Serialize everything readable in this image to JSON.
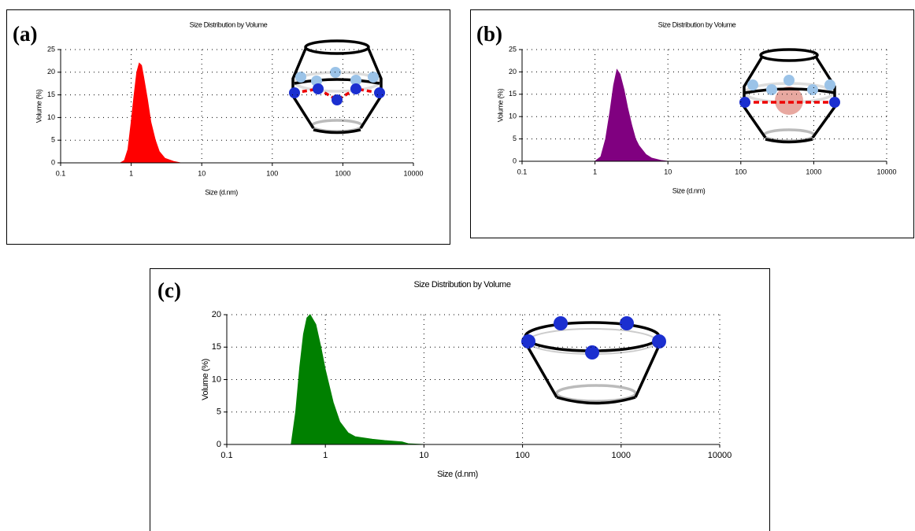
{
  "chart_data": [
    {
      "type": "area",
      "panel_label": "(a)",
      "title": "Size Distribution by Volume",
      "x_label": "Size (d.nm)",
      "y_label": "Volume (%)",
      "log_x": true,
      "grid": true,
      "color": "#ff0000",
      "x": [
        0.7,
        0.8,
        0.9,
        1.0,
        1.1,
        1.2,
        1.3,
        1.4,
        1.5,
        1.7,
        1.9,
        2.2,
        2.5,
        3,
        4,
        5,
        10000
      ],
      "values": [
        0,
        0.5,
        3,
        9,
        15,
        20,
        22,
        21.5,
        19,
        14,
        9,
        5,
        2.5,
        1,
        0.3,
        0,
        0
      ],
      "xlim": [
        0.1,
        10000
      ],
      "xticks": [
        0.1,
        1,
        10,
        100,
        1000,
        10000
      ],
      "ylim": [
        0,
        25
      ],
      "yticks": [
        0,
        5,
        10,
        15,
        20,
        25
      ]
    },
    {
      "type": "area",
      "panel_label": "(b)",
      "title": "Size Distribution by Volume",
      "x_label": "Size (d.nm)",
      "y_label": "Volume (%)",
      "log_x": true,
      "grid": true,
      "color": "#800080",
      "x": [
        1.0,
        1.2,
        1.4,
        1.6,
        1.8,
        2.0,
        2.2,
        2.5,
        2.8,
        3.2,
        3.6,
        4,
        5,
        6,
        8,
        10,
        10000
      ],
      "values": [
        0,
        1,
        5,
        11,
        17,
        20.5,
        19.5,
        16,
        12,
        8,
        5,
        3.5,
        1.5,
        0.7,
        0.2,
        0,
        0
      ],
      "xlim": [
        0.1,
        10000
      ],
      "xticks": [
        0.1,
        1,
        10,
        100,
        1000,
        10000
      ],
      "ylim": [
        0,
        25
      ],
      "yticks": [
        0,
        5,
        10,
        15,
        20,
        25
      ]
    },
    {
      "type": "area",
      "panel_label": "(c)",
      "title": "Size Distribution by Volume",
      "x_label": "Size (d.nm)",
      "y_label": "Volume (%)",
      "log_x": true,
      "grid": true,
      "color": "#008000",
      "x": [
        0.45,
        0.5,
        0.55,
        0.6,
        0.65,
        0.7,
        0.8,
        0.9,
        1.0,
        1.2,
        1.4,
        1.7,
        2,
        3,
        4,
        6,
        7,
        10,
        10000
      ],
      "values": [
        0,
        5,
        12,
        17,
        19.5,
        20,
        18.5,
        15,
        11.5,
        6.5,
        3.5,
        1.8,
        1.2,
        0.8,
        0.6,
        0.4,
        0.1,
        0,
        0
      ],
      "xlim": [
        0.1,
        10000
      ],
      "xticks": [
        0.1,
        1,
        10,
        100,
        1000,
        10000
      ],
      "ylim": [
        0,
        20
      ],
      "yticks": [
        0,
        5,
        10,
        15,
        20
      ]
    }
  ]
}
